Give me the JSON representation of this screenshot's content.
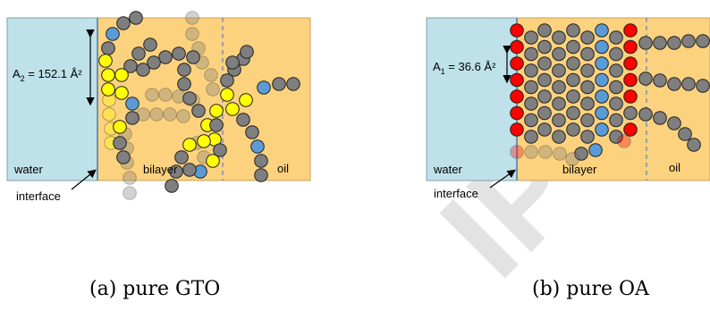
{
  "panel_a": {
    "area_label_main": "A",
    "area_label_sub": "2",
    "area_label_value": " = 152.1 Å²",
    "water_label": "water",
    "bilayer_label": "bilayer",
    "oil_label": "oil",
    "interface_label": "interface",
    "caption": "(a) pure GTO"
  },
  "panel_b": {
    "area_label_main": "A",
    "area_label_sub": "1",
    "area_label_value": " = 36.6 Å²",
    "water_label": "water",
    "bilayer_label": "bilayer",
    "oil_label": "oil",
    "interface_label": "interface",
    "caption": "(b) pure OA"
  },
  "watermark": "IPT",
  "colors": {
    "water": "#bfe1ea",
    "bilayer": "#fcd27e",
    "bead_gray": "#7f7f7f",
    "bead_yellow": "#ffff00",
    "bead_blue": "#5b9bd5",
    "bead_red": "#ff0000"
  }
}
